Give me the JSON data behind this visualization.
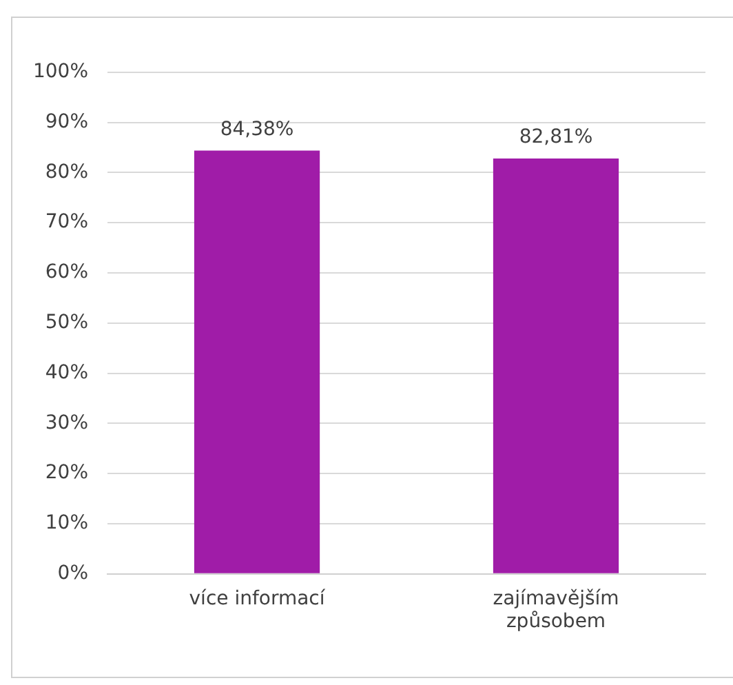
{
  "chart_data": {
    "type": "bar",
    "categories": [
      "více informací",
      "zajímavějším\nzpůsobem"
    ],
    "values": [
      84.38,
      82.81
    ],
    "value_labels": [
      "84,38%",
      "82,81%"
    ],
    "color": "#a01ca8",
    "ylim": [
      0,
      100
    ],
    "yticks": [
      {
        "value": 0,
        "label": "0%"
      },
      {
        "value": 10,
        "label": "10%"
      },
      {
        "value": 20,
        "label": "20%"
      },
      {
        "value": 30,
        "label": "30%"
      },
      {
        "value": 40,
        "label": "40%"
      },
      {
        "value": 50,
        "label": "50%"
      },
      {
        "value": 60,
        "label": "60%"
      },
      {
        "value": 70,
        "label": "70%"
      },
      {
        "value": 80,
        "label": "80%"
      },
      {
        "value": 90,
        "label": "90%"
      },
      {
        "value": 100,
        "label": "100%"
      }
    ],
    "grid": "y"
  }
}
